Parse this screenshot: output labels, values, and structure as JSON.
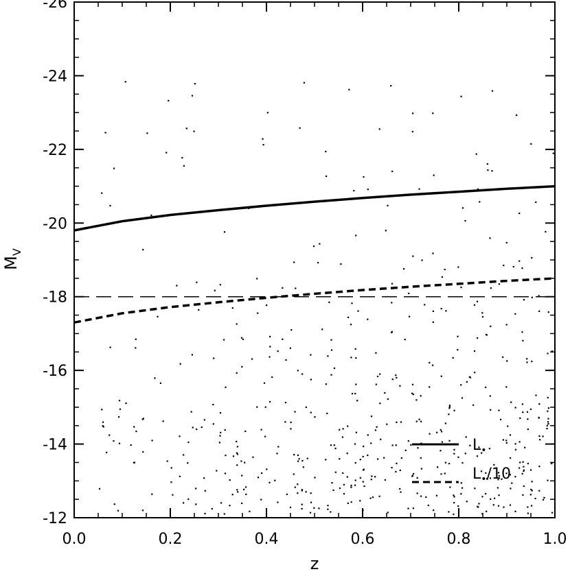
{
  "chart_data": {
    "type": "scatter",
    "title": "",
    "xlabel": "z",
    "ylabel": "M",
    "ylabel_subscript": "V",
    "xlim": [
      0.0,
      1.0
    ],
    "ylim": [
      -12,
      -26
    ],
    "y_axis_inverted": true,
    "x_ticks": [
      "0.0",
      "0.2",
      "0.4",
      "0.6",
      "0.8",
      "1.0"
    ],
    "y_ticks": [
      "-26",
      "-24",
      "-22",
      "-20",
      "-18",
      "-16",
      "-14",
      "-12"
    ],
    "grid": false,
    "legend_placement": "bottom-right",
    "scatter_cloud": {
      "color": "#000000",
      "approx_bands_by_z": [
        {
          "z": [
            0.04,
            0.1
          ],
          "mv_range": [
            -12.6,
            -17.5
          ]
        },
        {
          "z": [
            0.1,
            0.2
          ],
          "mv_range": [
            -13.0,
            -21.0
          ]
        },
        {
          "z": [
            0.2,
            0.3
          ],
          "mv_range": [
            -14.5,
            -22.5
          ]
        },
        {
          "z": [
            0.3,
            0.5
          ],
          "mv_range": [
            -15.0,
            -23.0
          ]
        },
        {
          "z": [
            0.5,
            0.7
          ],
          "mv_range": [
            -16.0,
            -23.5
          ]
        },
        {
          "z": [
            0.7,
            1.0
          ],
          "mv_range": [
            -17.0,
            -23.8
          ]
        }
      ]
    },
    "lines": [
      {
        "name": "L*",
        "legend_label": "L",
        "legend_subscript": "•",
        "style": "solid",
        "x": [
          0.0,
          0.1,
          0.2,
          0.3,
          0.4,
          0.5,
          0.6,
          0.7,
          0.8,
          0.9,
          1.0
        ],
        "y": [
          -19.8,
          -20.05,
          -20.22,
          -20.35,
          -20.47,
          -20.58,
          -20.68,
          -20.77,
          -20.85,
          -20.93,
          -21.0
        ]
      },
      {
        "name": "L*/10",
        "legend_label": "L",
        "legend_subscript": "•",
        "legend_suffix": "/10",
        "style": "dashed",
        "x": [
          0.0,
          0.1,
          0.2,
          0.3,
          0.4,
          0.5,
          0.6,
          0.7,
          0.8,
          0.9,
          1.0
        ],
        "y": [
          -17.3,
          -17.55,
          -17.72,
          -17.85,
          -17.97,
          -18.08,
          -18.18,
          -18.27,
          -18.35,
          -18.43,
          -18.5
        ]
      },
      {
        "name": "threshold",
        "style": "long-dash",
        "x": [
          0.0,
          1.0
        ],
        "y": [
          -18.0,
          -18.0
        ]
      }
    ]
  }
}
